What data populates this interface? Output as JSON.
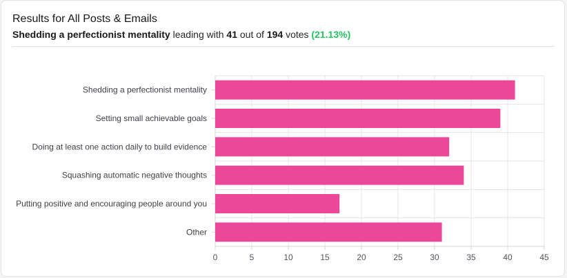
{
  "header": {
    "title": "Results for All Posts & Emails",
    "leader": "Shedding a perfectionist mentality",
    "text_leading_with": "leading with",
    "leader_votes": "41",
    "text_out_of": "out of",
    "total_votes": "194",
    "text_votes": "votes",
    "percent": "(21.13%)"
  },
  "colors": {
    "bar": "#ec4899",
    "positive": "#22c55e"
  },
  "chart_data": {
    "type": "bar",
    "orientation": "horizontal",
    "categories": [
      "Shedding a perfectionist mentality",
      "Setting small achievable goals",
      "Doing at least one action daily to build evidence",
      "Squashing automatic negative thoughts",
      "Putting positive and encouraging people around you",
      "Other"
    ],
    "values": [
      41,
      39,
      32,
      34,
      17,
      31
    ],
    "xlim": [
      0,
      45
    ],
    "xticks": [
      0,
      5,
      10,
      15,
      20,
      25,
      30,
      35,
      40,
      45
    ],
    "grid": true
  }
}
